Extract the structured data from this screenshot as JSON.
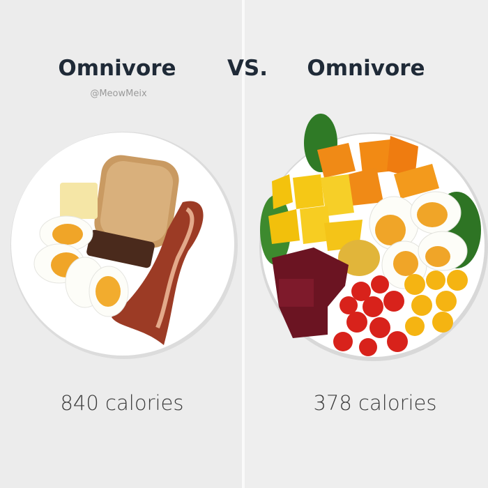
{
  "left": {
    "title": "Omnivore",
    "calories": "840 calories"
  },
  "vs": "VS.",
  "watermark": "@MeowMeix",
  "right": {
    "title": "Omnivore",
    "calories": "378 calories"
  }
}
